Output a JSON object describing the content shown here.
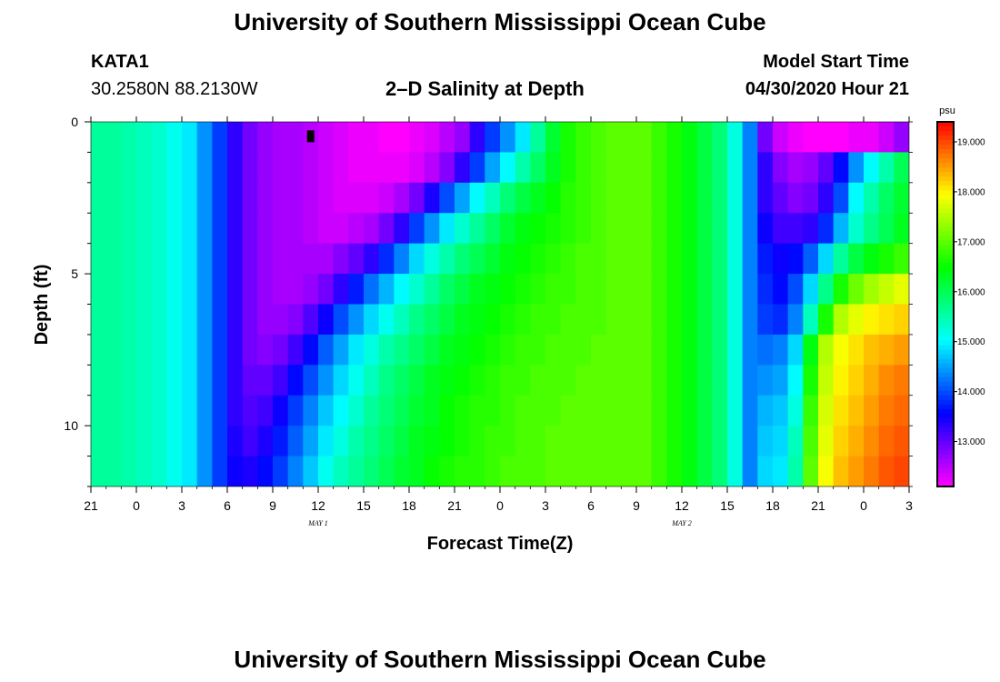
{
  "header": {
    "title": "University of Southern Mississippi Ocean Cube",
    "station_id": "KATA1",
    "coordinates": "30.2580N 88.2130W",
    "plot_title": "2–D Salinity at Depth",
    "model_start_label": "Model Start Time",
    "model_start_value": "04/30/2020 Hour 21"
  },
  "footer": {
    "title": "University of Southern Mississippi Ocean Cube"
  },
  "chart_data": {
    "type": "heatmap",
    "title": "2–D Salinity at Depth",
    "xlabel": "Forecast Time(Z)",
    "ylabel": "Depth (ft)",
    "x_tick_labels": [
      "21",
      "0",
      "3",
      "6",
      "9",
      "12",
      "15",
      "18",
      "21",
      "0",
      "3",
      "6",
      "9",
      "12",
      "15",
      "18",
      "21",
      "0",
      "3"
    ],
    "x_day_labels": [
      {
        "label": "MAY 1",
        "at_tick": 5
      },
      {
        "label": "MAY 2",
        "at_tick": 13
      }
    ],
    "x_range_hours": [
      0,
      54
    ],
    "y_ticks": [
      0,
      5,
      10
    ],
    "y_range": [
      0,
      12
    ],
    "y_inverted": true,
    "colorbar": {
      "unit": "psu",
      "min": 12.1,
      "max": 19.4,
      "tick_labels": [
        "13.000",
        "14.000",
        "15.000",
        "16.000",
        "17.000",
        "18.000",
        "19.000"
      ],
      "tick_values": [
        13,
        14,
        15,
        16,
        17,
        18,
        19
      ]
    },
    "depth_levels_ft": [
      0,
      1,
      2,
      3,
      4,
      5,
      6,
      7,
      8,
      9,
      10,
      11
    ],
    "hours": [
      0,
      1,
      2,
      3,
      4,
      5,
      6,
      7,
      8,
      9,
      10,
      11,
      12,
      13,
      14,
      15,
      16,
      17,
      18,
      19,
      20,
      21,
      22,
      23,
      24,
      25,
      26,
      27,
      28,
      29,
      30,
      31,
      32,
      33,
      34,
      35,
      36,
      37,
      38,
      39,
      40,
      41,
      42,
      43,
      44,
      45,
      46,
      47,
      48,
      49,
      50,
      51,
      52,
      53
    ],
    "salinity_psu": [
      [
        15.6,
        15.6,
        15.5,
        15.4,
        15.3,
        15.1,
        14.9,
        14.4,
        13.9,
        13.3,
        12.9,
        12.7,
        12.6,
        12.6,
        12.5,
        12.4,
        12.3,
        12.2,
        12.2,
        12.1,
        12.1,
        12.2,
        12.3,
        12.5,
        12.7,
        13.3,
        13.9,
        14.4,
        14.9,
        15.6,
        16.2,
        16.6,
        16.8,
        16.9,
        17.0,
        17.0,
        17.0,
        16.8,
        16.6,
        16.4,
        16.1,
        15.8,
        15.2,
        14.3,
        12.9,
        12.4,
        12.2,
        12.1,
        12.1,
        12.1,
        12.2,
        12.2,
        12.4,
        12.7
      ],
      [
        15.6,
        15.6,
        15.5,
        15.4,
        15.3,
        15.1,
        14.9,
        14.4,
        13.9,
        13.3,
        12.9,
        12.7,
        12.6,
        12.6,
        12.5,
        12.4,
        12.3,
        12.2,
        12.2,
        12.2,
        12.2,
        12.3,
        12.5,
        12.8,
        13.3,
        13.9,
        14.5,
        15.0,
        15.5,
        15.9,
        16.3,
        16.6,
        16.8,
        16.9,
        17.0,
        17.0,
        17.0,
        16.8,
        16.6,
        16.4,
        16.1,
        15.8,
        15.2,
        14.3,
        13.3,
        12.8,
        12.6,
        12.7,
        13.0,
        13.6,
        14.4,
        15.0,
        15.5,
        16.0
      ],
      [
        15.6,
        15.6,
        15.5,
        15.4,
        15.3,
        15.1,
        14.9,
        14.4,
        13.9,
        13.3,
        12.9,
        12.7,
        12.6,
        12.6,
        12.5,
        12.4,
        12.3,
        12.3,
        12.3,
        12.4,
        12.6,
        12.9,
        13.4,
        14.0,
        14.5,
        15.0,
        15.4,
        15.8,
        16.1,
        16.3,
        16.5,
        16.7,
        16.8,
        16.9,
        17.0,
        17.0,
        17.0,
        16.8,
        16.6,
        16.4,
        16.1,
        15.8,
        15.2,
        14.3,
        13.3,
        13.0,
        12.8,
        12.9,
        13.3,
        14.0,
        15.0,
        15.5,
        15.9,
        16.2
      ],
      [
        15.6,
        15.6,
        15.5,
        15.4,
        15.3,
        15.1,
        14.9,
        14.4,
        13.9,
        13.3,
        12.9,
        12.7,
        12.6,
        12.6,
        12.5,
        12.4,
        12.4,
        12.5,
        12.6,
        12.9,
        13.3,
        13.9,
        14.4,
        14.9,
        15.3,
        15.6,
        15.9,
        16.2,
        16.4,
        16.5,
        16.6,
        16.7,
        16.8,
        16.9,
        17.0,
        17.0,
        17.0,
        16.8,
        16.6,
        16.4,
        16.1,
        15.8,
        15.2,
        14.3,
        13.5,
        13.2,
        13.2,
        13.3,
        13.8,
        14.6,
        15.3,
        15.7,
        16.0,
        16.3
      ],
      [
        15.6,
        15.6,
        15.5,
        15.4,
        15.3,
        15.1,
        14.9,
        14.4,
        13.9,
        13.3,
        12.9,
        12.7,
        12.6,
        12.6,
        12.6,
        12.6,
        12.8,
        13.0,
        13.3,
        13.8,
        14.3,
        14.8,
        15.2,
        15.5,
        15.8,
        16.0,
        16.2,
        16.4,
        16.5,
        16.6,
        16.7,
        16.8,
        16.9,
        16.9,
        17.0,
        17.0,
        17.0,
        16.8,
        16.6,
        16.4,
        16.1,
        15.8,
        15.2,
        14.3,
        13.7,
        13.5,
        13.6,
        14.1,
        14.8,
        15.6,
        16.1,
        16.4,
        16.6,
        16.8
      ],
      [
        15.6,
        15.6,
        15.5,
        15.4,
        15.3,
        15.1,
        14.9,
        14.4,
        13.9,
        13.3,
        12.9,
        12.7,
        12.6,
        12.6,
        12.7,
        12.9,
        13.3,
        13.7,
        14.2,
        14.6,
        15.0,
        15.3,
        15.6,
        15.9,
        16.1,
        16.3,
        16.4,
        16.5,
        16.6,
        16.7,
        16.8,
        16.8,
        16.9,
        16.9,
        17.0,
        17.0,
        17.0,
        16.8,
        16.6,
        16.4,
        16.1,
        15.8,
        15.2,
        14.3,
        13.8,
        13.6,
        14.0,
        14.8,
        15.7,
        16.6,
        17.1,
        17.4,
        17.6,
        17.8
      ],
      [
        15.6,
        15.6,
        15.5,
        15.4,
        15.3,
        15.1,
        14.9,
        14.4,
        13.9,
        13.3,
        12.9,
        12.7,
        12.7,
        12.8,
        13.1,
        13.5,
        14.0,
        14.4,
        14.8,
        15.1,
        15.4,
        15.7,
        15.9,
        16.1,
        16.3,
        16.4,
        16.5,
        16.6,
        16.7,
        16.8,
        16.8,
        16.9,
        16.9,
        16.9,
        17.0,
        17.0,
        17.0,
        16.8,
        16.6,
        16.4,
        16.1,
        15.8,
        15.2,
        14.3,
        13.9,
        13.8,
        14.3,
        15.4,
        16.6,
        17.5,
        17.8,
        18.0,
        18.1,
        18.2
      ],
      [
        15.6,
        15.6,
        15.5,
        15.4,
        15.3,
        15.1,
        14.9,
        14.4,
        13.9,
        13.3,
        12.9,
        12.8,
        12.9,
        13.2,
        13.6,
        14.1,
        14.5,
        14.9,
        15.2,
        15.5,
        15.7,
        15.9,
        16.1,
        16.3,
        16.4,
        16.5,
        16.6,
        16.7,
        16.8,
        16.8,
        16.9,
        16.9,
        16.9,
        17.0,
        17.0,
        17.0,
        17.0,
        16.8,
        16.6,
        16.4,
        16.1,
        15.8,
        15.2,
        14.3,
        14.2,
        14.3,
        14.8,
        16.4,
        17.5,
        17.9,
        18.1,
        18.3,
        18.4,
        18.5
      ],
      [
        15.6,
        15.6,
        15.5,
        15.4,
        15.3,
        15.1,
        14.9,
        14.4,
        13.9,
        13.3,
        13.0,
        13.0,
        13.2,
        13.6,
        14.0,
        14.4,
        14.8,
        15.1,
        15.4,
        15.7,
        15.9,
        16.1,
        16.3,
        16.4,
        16.5,
        16.6,
        16.7,
        16.8,
        16.8,
        16.9,
        16.9,
        16.9,
        17.0,
        17.0,
        17.0,
        17.0,
        17.0,
        16.8,
        16.6,
        16.4,
        16.1,
        15.8,
        15.2,
        14.3,
        14.4,
        14.5,
        15.0,
        16.6,
        17.6,
        18.0,
        18.2,
        18.4,
        18.6,
        18.7
      ],
      [
        15.6,
        15.6,
        15.5,
        15.4,
        15.3,
        15.1,
        14.9,
        14.4,
        13.9,
        13.3,
        13.1,
        13.2,
        13.5,
        13.9,
        14.3,
        14.7,
        15.0,
        15.3,
        15.6,
        15.8,
        16.0,
        16.2,
        16.3,
        16.5,
        16.6,
        16.7,
        16.7,
        16.8,
        16.9,
        16.9,
        16.9,
        17.0,
        17.0,
        17.0,
        17.0,
        17.0,
        17.0,
        16.8,
        16.6,
        16.4,
        16.1,
        15.8,
        15.2,
        14.3,
        14.6,
        14.7,
        15.2,
        16.8,
        17.7,
        18.1,
        18.3,
        18.5,
        18.7,
        18.8
      ],
      [
        15.6,
        15.6,
        15.5,
        15.4,
        15.3,
        15.1,
        14.9,
        14.4,
        13.9,
        13.4,
        13.2,
        13.4,
        13.7,
        14.1,
        14.5,
        14.9,
        15.2,
        15.5,
        15.7,
        15.9,
        16.1,
        16.3,
        16.4,
        16.5,
        16.6,
        16.7,
        16.8,
        16.8,
        16.9,
        16.9,
        17.0,
        17.0,
        17.0,
        17.0,
        17.0,
        17.0,
        17.0,
        16.8,
        16.6,
        16.4,
        16.1,
        15.8,
        15.2,
        14.3,
        14.7,
        14.8,
        15.4,
        16.9,
        17.8,
        18.2,
        18.4,
        18.6,
        18.8,
        18.9
      ],
      [
        15.6,
        15.6,
        15.5,
        15.4,
        15.3,
        15.1,
        14.9,
        14.4,
        13.9,
        13.5,
        13.4,
        13.6,
        13.9,
        14.3,
        14.7,
        15.1,
        15.4,
        15.6,
        15.8,
        16.0,
        16.2,
        16.3,
        16.5,
        16.6,
        16.7,
        16.7,
        16.8,
        16.9,
        16.9,
        16.9,
        17.0,
        17.0,
        17.0,
        17.0,
        17.0,
        17.0,
        17.0,
        16.8,
        16.6,
        16.4,
        16.1,
        15.8,
        15.2,
        14.3,
        14.8,
        14.9,
        15.5,
        17.0,
        17.9,
        18.3,
        18.5,
        18.7,
        18.9,
        19.0
      ]
    ],
    "marker": {
      "hour": 14.5,
      "depth_ft": 0.4
    }
  }
}
